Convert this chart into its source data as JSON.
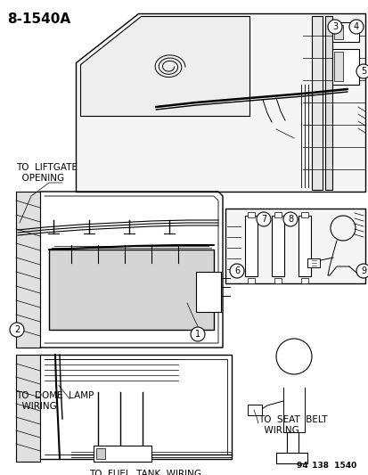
{
  "title": "8-1540A",
  "background_color": "#ffffff",
  "part_number_label": "94 138  1540",
  "labels": {
    "to_liftgate": "TO  LIFTGATE\n  OPENING",
    "to_dome_lamp": "TO  DOME  LAMP\n  WIRING",
    "to_fuel_tank": "TO  FUEL  TANK  WIRING",
    "to_seat_belt": "TO  SEAT  BELT\n  WIRING"
  },
  "fig_width": 4.14,
  "fig_height": 5.33,
  "dpi": 100,
  "title_fontsize": 11,
  "label_fontsize": 7.5
}
